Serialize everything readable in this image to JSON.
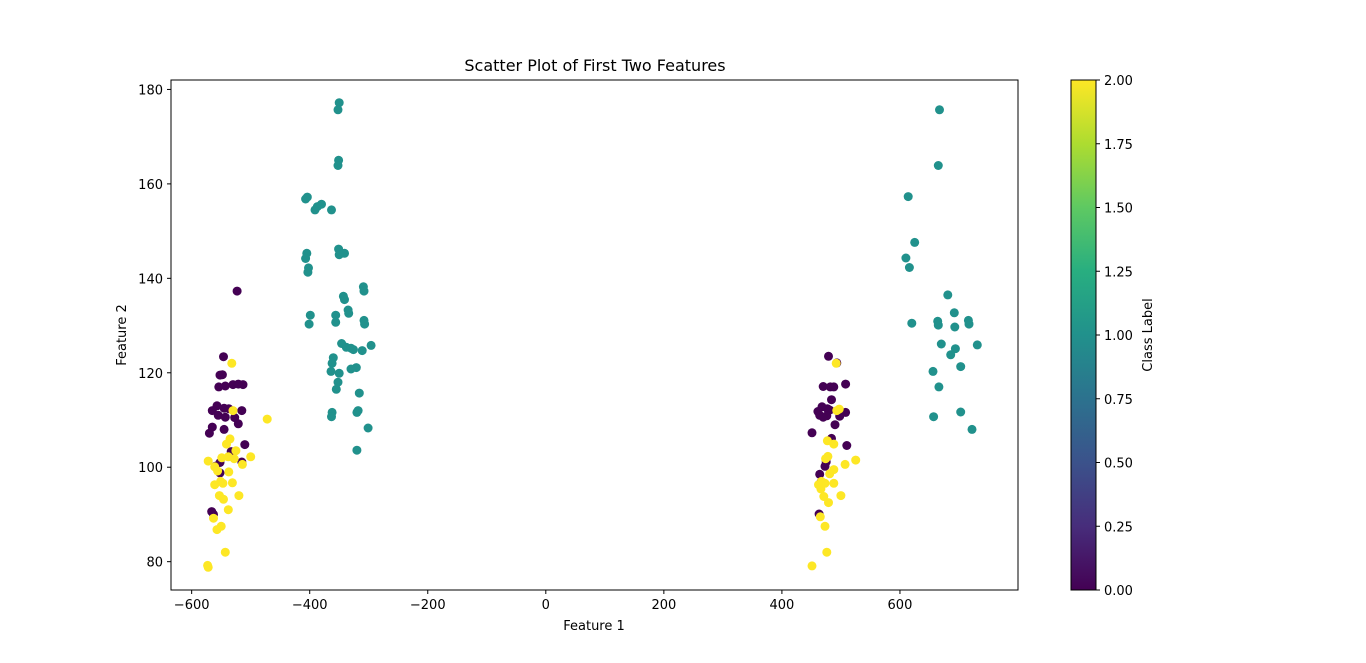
{
  "chart_data": {
    "type": "scatter",
    "title": "Scatter Plot of First Two Features",
    "xlabel": "Feature 1",
    "ylabel": "Feature 2",
    "xlim": [
      -635,
      800
    ],
    "ylim": [
      74,
      182
    ],
    "xticks": [
      -600,
      -400,
      -200,
      0,
      200,
      400,
      600
    ],
    "yticks": [
      80,
      100,
      120,
      140,
      160,
      180
    ],
    "grid": false,
    "colorbar": {
      "label": "Class Label",
      "min": 0,
      "max": 2,
      "ticks": [
        "0.00",
        "0.25",
        "0.50",
        "0.75",
        "1.00",
        "1.25",
        "1.50",
        "1.75",
        "2.00"
      ],
      "colormap": "viridis"
    },
    "class_colors": {
      "0": "#440154",
      "1": "#21918c",
      "2": "#fde725"
    },
    "points": [
      [
        -523,
        137.3,
        0
      ],
      [
        -546,
        123.4,
        0
      ],
      [
        -552,
        119.5,
        0
      ],
      [
        -548,
        119.6,
        0
      ],
      [
        -530,
        117.5,
        0
      ],
      [
        -521,
        117.6,
        0
      ],
      [
        -513,
        117.5,
        0
      ],
      [
        -543,
        117.2,
        0
      ],
      [
        -554,
        117.0,
        0
      ],
      [
        -557,
        113.0,
        0
      ],
      [
        -565,
        112.0,
        0
      ],
      [
        -545,
        112.5,
        0
      ],
      [
        -537,
        112.4,
        0
      ],
      [
        -515,
        112.0,
        0
      ],
      [
        -555,
        111.0,
        0
      ],
      [
        -543,
        110.6,
        0
      ],
      [
        -527,
        110.5,
        0
      ],
      [
        -521,
        109.2,
        0
      ],
      [
        -565,
        108.5,
        0
      ],
      [
        -545,
        108.0,
        0
      ],
      [
        -570,
        107.2,
        0
      ],
      [
        -510,
        104.8,
        0
      ],
      [
        -533,
        103.3,
        0
      ],
      [
        -552,
        101.0,
        0
      ],
      [
        -515,
        101.1,
        0
      ],
      [
        -560,
        100.2,
        0
      ],
      [
        -552,
        98.8,
        0
      ],
      [
        -566,
        90.6,
        0
      ],
      [
        -563,
        90.0,
        0
      ],
      [
        -532,
        122.0,
        2
      ],
      [
        -530,
        112.0,
        2
      ],
      [
        -472,
        110.2,
        2
      ],
      [
        -535,
        106.0,
        2
      ],
      [
        -541,
        104.9,
        2
      ],
      [
        -525,
        103.5,
        2
      ],
      [
        -549,
        102.0,
        2
      ],
      [
        -538,
        102.2,
        2
      ],
      [
        -500,
        102.2,
        2
      ],
      [
        -528,
        101.8,
        2
      ],
      [
        -572,
        101.3,
        2
      ],
      [
        -514,
        100.6,
        2
      ],
      [
        -561,
        100.1,
        2
      ],
      [
        -556,
        99.2,
        2
      ],
      [
        -537,
        99.0,
        2
      ],
      [
        -551,
        97.0,
        2
      ],
      [
        -547,
        96.6,
        2
      ],
      [
        -531,
        96.7,
        2
      ],
      [
        -561,
        96.3,
        2
      ],
      [
        -553,
        94.0,
        2
      ],
      [
        -520,
        94.0,
        2
      ],
      [
        -546,
        93.2,
        2
      ],
      [
        -538,
        91.0,
        2
      ],
      [
        -563,
        89.2,
        2
      ],
      [
        -550,
        87.5,
        2
      ],
      [
        -557,
        86.8,
        2
      ],
      [
        -543,
        82.0,
        2
      ],
      [
        -573,
        79.2,
        2
      ],
      [
        -572,
        78.8,
        2
      ],
      [
        -350,
        177.2,
        1
      ],
      [
        -352,
        175.7,
        1
      ],
      [
        -351,
        165.0,
        1
      ],
      [
        -352,
        163.9,
        1
      ],
      [
        -404,
        157.2,
        1
      ],
      [
        -407,
        156.8,
        1
      ],
      [
        -380,
        155.7,
        1
      ],
      [
        -387,
        155.2,
        1
      ],
      [
        -391,
        154.5,
        1
      ],
      [
        -363,
        154.5,
        1
      ],
      [
        -351,
        146.2,
        1
      ],
      [
        -341,
        145.3,
        1
      ],
      [
        -405,
        145.3,
        1
      ],
      [
        -407,
        144.2,
        1
      ],
      [
        -350,
        145.0,
        1
      ],
      [
        -402,
        142.2,
        1
      ],
      [
        -403,
        141.3,
        1
      ],
      [
        -309,
        138.2,
        1
      ],
      [
        -308,
        137.3,
        1
      ],
      [
        -343,
        136.2,
        1
      ],
      [
        -341,
        135.5,
        1
      ],
      [
        -335,
        133.3,
        1
      ],
      [
        -334,
        132.6,
        1
      ],
      [
        -399,
        132.2,
        1
      ],
      [
        -356,
        132.2,
        1
      ],
      [
        -308,
        131.1,
        1
      ],
      [
        -356,
        130.7,
        1
      ],
      [
        -401,
        130.3,
        1
      ],
      [
        -307,
        130.3,
        1
      ],
      [
        -346,
        126.2,
        1
      ],
      [
        -296,
        125.8,
        1
      ],
      [
        -338,
        125.4,
        1
      ],
      [
        -330,
        125.2,
        1
      ],
      [
        -326,
        124.9,
        1
      ],
      [
        -311,
        124.7,
        1
      ],
      [
        -360,
        123.2,
        1
      ],
      [
        -362,
        122.0,
        1
      ],
      [
        -321,
        121.1,
        1
      ],
      [
        -330,
        120.8,
        1
      ],
      [
        -364,
        120.3,
        1
      ],
      [
        -350,
        119.9,
        1
      ],
      [
        -352,
        118.0,
        1
      ],
      [
        -355,
        116.5,
        1
      ],
      [
        -316,
        115.7,
        1
      ],
      [
        -318,
        112.0,
        1
      ],
      [
        -320,
        111.6,
        1
      ],
      [
        -362,
        111.6,
        1
      ],
      [
        -363,
        110.7,
        1
      ],
      [
        -301,
        108.3,
        1
      ],
      [
        -320,
        103.6,
        1
      ],
      [
        479,
        123.5,
        0
      ],
      [
        493,
        122.1,
        0
      ],
      [
        508,
        117.6,
        0
      ],
      [
        470,
        117.1,
        0
      ],
      [
        482,
        117.0,
        0
      ],
      [
        488,
        117.0,
        0
      ],
      [
        484,
        114.3,
        0
      ],
      [
        468,
        112.8,
        0
      ],
      [
        477,
        112.4,
        0
      ],
      [
        481,
        112.1,
        0
      ],
      [
        461,
        111.8,
        0
      ],
      [
        508,
        111.6,
        0
      ],
      [
        464,
        111.0,
        0
      ],
      [
        476,
        110.9,
        0
      ],
      [
        498,
        110.8,
        0
      ],
      [
        470,
        110.6,
        0
      ],
      [
        490,
        109.0,
        0
      ],
      [
        451,
        107.3,
        0
      ],
      [
        484,
        106.1,
        0
      ],
      [
        510,
        104.6,
        0
      ],
      [
        475,
        101.1,
        0
      ],
      [
        473,
        100.2,
        0
      ],
      [
        464,
        98.5,
        0
      ],
      [
        466,
        96.8,
        0
      ],
      [
        463,
        90.1,
        0
      ],
      [
        492,
        122.0,
        2
      ],
      [
        493,
        112.0,
        2
      ],
      [
        497,
        112.3,
        2
      ],
      [
        477,
        105.6,
        2
      ],
      [
        488,
        104.9,
        2
      ],
      [
        478,
        102.3,
        2
      ],
      [
        474,
        101.8,
        2
      ],
      [
        525,
        101.5,
        2
      ],
      [
        507,
        100.6,
        2
      ],
      [
        488,
        99.5,
        2
      ],
      [
        481,
        98.6,
        2
      ],
      [
        467,
        97.0,
        2
      ],
      [
        473,
        96.6,
        2
      ],
      [
        488,
        96.6,
        2
      ],
      [
        462,
        96.3,
        2
      ],
      [
        466,
        95.4,
        2
      ],
      [
        471,
        93.8,
        2
      ],
      [
        500,
        94.0,
        2
      ],
      [
        479,
        92.5,
        2
      ],
      [
        465,
        89.5,
        2
      ],
      [
        473,
        87.5,
        2
      ],
      [
        476,
        82.0,
        2
      ],
      [
        451,
        79.1,
        2
      ],
      [
        667,
        175.7,
        1
      ],
      [
        665,
        163.9,
        1
      ],
      [
        614,
        157.3,
        1
      ],
      [
        625,
        147.6,
        1
      ],
      [
        610,
        144.3,
        1
      ],
      [
        616,
        142.3,
        1
      ],
      [
        681,
        136.5,
        1
      ],
      [
        692,
        132.7,
        1
      ],
      [
        664,
        130.9,
        1
      ],
      [
        716,
        131.1,
        1
      ],
      [
        717,
        130.3,
        1
      ],
      [
        665,
        130.1,
        1
      ],
      [
        620,
        130.5,
        1
      ],
      [
        693,
        129.7,
        1
      ],
      [
        670,
        126.1,
        1
      ],
      [
        731,
        125.9,
        1
      ],
      [
        694,
        125.1,
        1
      ],
      [
        686,
        123.8,
        1
      ],
      [
        703,
        121.3,
        1
      ],
      [
        656,
        120.3,
        1
      ],
      [
        666,
        117.0,
        1
      ],
      [
        703,
        111.7,
        1
      ],
      [
        657,
        110.7,
        1
      ],
      [
        722,
        108.0,
        1
      ]
    ]
  }
}
